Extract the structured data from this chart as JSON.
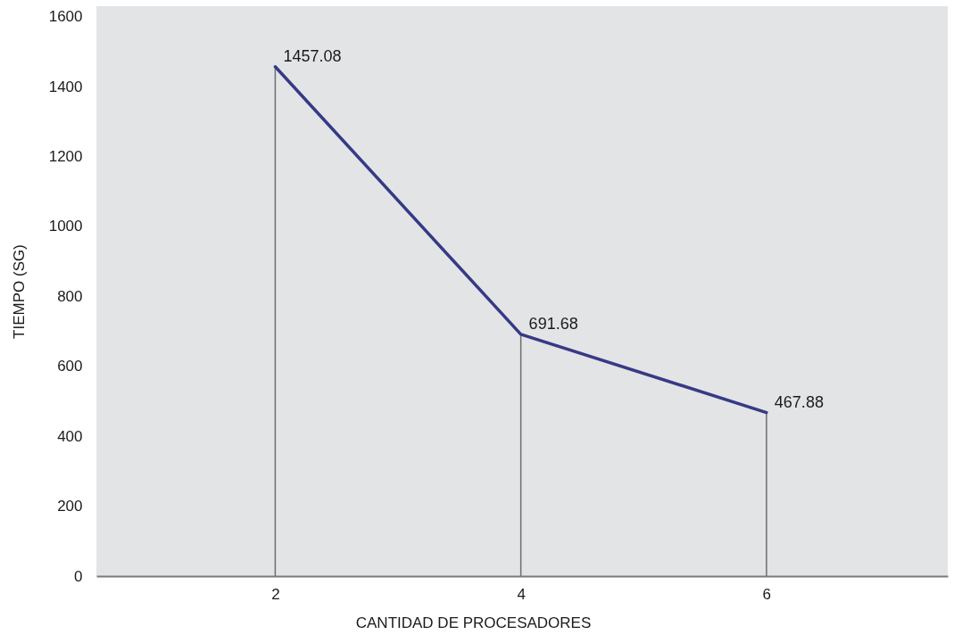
{
  "chart_data": {
    "type": "line",
    "xlabel": "CANTIDAD DE PROCESADORES",
    "ylabel": "TIEMPO (SG)",
    "x": [
      2,
      4,
      6
    ],
    "xlim": [
      0.58,
      7.44
    ],
    "xticks": [
      2,
      4,
      6
    ],
    "ylim": [
      0,
      1630
    ],
    "yticks": [
      0,
      200,
      400,
      600,
      800,
      1000,
      1200,
      1400,
      1600
    ],
    "series": [
      {
        "color": "#363a85",
        "values": [
          1457.08,
          691.68,
          467.88
        ],
        "value_labels": [
          "1457.08",
          "691.68",
          "467.88"
        ]
      },
      {
        "type": "bar",
        "color": "#6e6e6e",
        "values": [
          1457.08,
          691.68,
          467.88
        ]
      }
    ],
    "marker": "none",
    "grid": false
  }
}
